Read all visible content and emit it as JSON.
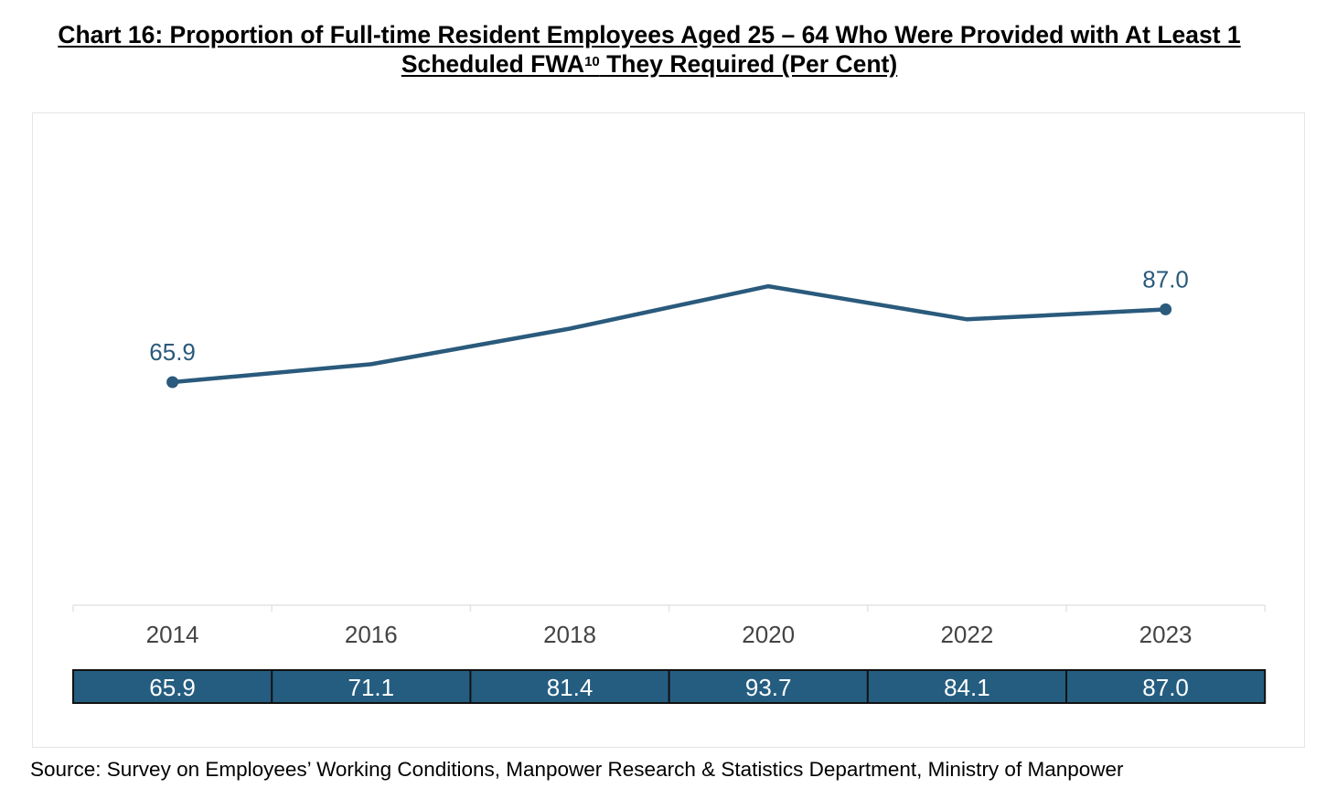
{
  "title": {
    "line1": "Chart 16: Proportion of Full-time Resident Employees Aged 25 – 64 Who Were Provided with At Least 1",
    "line2_pre": "Scheduled FWA",
    "line2_sup": "10",
    "line2_post": " They Required (Per Cent)"
  },
  "chart_data": {
    "type": "line",
    "title": "Chart 16: Proportion of Full-time Resident Employees Aged 25 – 64 Who Were Provided with At Least 1 Scheduled FWA10 They Required (Per Cent)",
    "categories": [
      "2014",
      "2016",
      "2018",
      "2020",
      "2022",
      "2023"
    ],
    "series": [
      {
        "values": [
          65.9,
          71.1,
          81.4,
          93.7,
          84.1,
          87.0
        ],
        "labels": [
          "65.9",
          "71.1",
          "81.4",
          "93.7",
          "84.1",
          "87.0"
        ]
      }
    ],
    "point_labels": [
      {
        "index": 0,
        "text": "65.9"
      },
      {
        "index": 5,
        "text": "87.0"
      }
    ],
    "marker_indices": [
      0,
      5
    ],
    "data_table": true,
    "y_axis_visible": false,
    "grid": false,
    "line_color": "#2a5a7c",
    "table_fill": "#255d80",
    "table_text_color": "#ffffff"
  },
  "source": "Source: Survey on Employees’ Working Conditions, Manpower Research & Statistics Department, Ministry of Manpower"
}
